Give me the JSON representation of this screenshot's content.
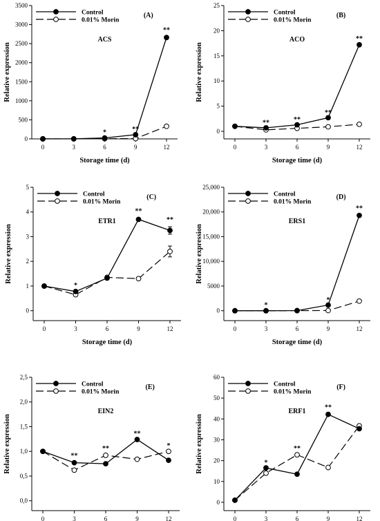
{
  "chart_data": [
    {
      "type": "line",
      "panel_letter": "(A)",
      "annotation": "ACS",
      "xlabel": "Storage time (d)",
      "ylabel": "Relative expression",
      "x": [
        0,
        3,
        6,
        9,
        12
      ],
      "x_ticks": [
        "0",
        "3",
        "6",
        "9",
        "12"
      ],
      "y_ticks": [
        "0",
        "500",
        "1000",
        "1500",
        "2000",
        "2500",
        "3000",
        "3500"
      ],
      "ylim": [
        0,
        3500
      ],
      "series": [
        {
          "name": "Control",
          "values": [
            1,
            2,
            25,
            110,
            2660
          ],
          "marker": "filled-circle",
          "line": "solid",
          "color": "#000000"
        },
        {
          "name": "0.01% Morin",
          "values": [
            1,
            1,
            5,
            8,
            330
          ],
          "marker": "open-circle",
          "line": "dashed",
          "color": "#000000"
        }
      ],
      "significance": [
        {
          "x": 6,
          "y": 120,
          "label": "*"
        },
        {
          "x": 9,
          "y": 200,
          "label": "**"
        },
        {
          "x": 12,
          "y": 2800,
          "label": "**"
        }
      ],
      "legend_position": "top-left"
    },
    {
      "type": "line",
      "panel_letter": "(B)",
      "annotation": "ACO",
      "xlabel": "Storage time (d)",
      "ylabel": "Relative expression",
      "x": [
        0,
        3,
        6,
        9,
        12
      ],
      "x_ticks": [
        "0",
        "3",
        "6",
        "9",
        "12"
      ],
      "y_ticks": [
        "0",
        "5",
        "10",
        "15",
        "20",
        "25"
      ],
      "ylim": [
        -1.5,
        25
      ],
      "series": [
        {
          "name": "Control",
          "values": [
            1,
            0.7,
            1.3,
            2.7,
            17.2
          ],
          "marker": "filled-circle",
          "line": "solid",
          "color": "#000000"
        },
        {
          "name": "0.01% Morin",
          "values": [
            1,
            0.3,
            0.6,
            0.9,
            1.4
          ],
          "marker": "open-circle",
          "line": "dashed",
          "color": "#000000"
        }
      ],
      "significance": [
        {
          "x": 3,
          "y": 1.3,
          "label": "**"
        },
        {
          "x": 6,
          "y": 1.9,
          "label": "**"
        },
        {
          "x": 9,
          "y": 3.3,
          "label": "**"
        },
        {
          "x": 12,
          "y": 18.0,
          "label": "**"
        }
      ],
      "legend_position": "top-left"
    },
    {
      "type": "line",
      "panel_letter": "(C)",
      "annotation": "ETR1",
      "xlabel": "Storage time (d)",
      "ylabel": "Relative expression",
      "x": [
        0,
        3,
        6,
        9,
        12
      ],
      "x_ticks": [
        "0",
        "3",
        "6",
        "9",
        "12"
      ],
      "y_ticks": [
        "0",
        "1",
        "2",
        "3",
        "4",
        "5"
      ],
      "ylim": [
        -0.4,
        5
      ],
      "series": [
        {
          "name": "Control",
          "values": [
            1.0,
            0.78,
            1.32,
            3.7,
            3.25
          ],
          "marker": "filled-circle",
          "line": "solid",
          "color": "#000000"
        },
        {
          "name": "0.01% Morin",
          "values": [
            1.0,
            0.65,
            1.35,
            1.3,
            2.4
          ],
          "marker": "open-circle",
          "line": "dashed",
          "color": "#000000"
        }
      ],
      "error_bars": [
        {
          "series": "Control",
          "x": 12,
          "err": 0.15
        },
        {
          "series": "0.01% Morin",
          "x": 12,
          "err": 0.22
        }
      ],
      "significance": [
        {
          "x": 3,
          "y": 0.95,
          "label": "*"
        },
        {
          "x": 9,
          "y": 3.95,
          "label": "**"
        },
        {
          "x": 12,
          "y": 3.6,
          "label": "**"
        }
      ],
      "legend_position": "top-left"
    },
    {
      "type": "line",
      "panel_letter": "(D)",
      "annotation": "ERS1",
      "xlabel": "Storage time (d)",
      "ylabel": "Relative expression",
      "x": [
        0,
        3,
        6,
        9,
        12
      ],
      "x_ticks": [
        "0",
        "3",
        "6",
        "9",
        "12"
      ],
      "y_ticks": [
        "0",
        "5000",
        "10,000",
        "15,000",
        "20,000",
        "25,000"
      ],
      "ylim": [
        -2000,
        25000
      ],
      "series": [
        {
          "name": "Control",
          "values": [
            1,
            1,
            30,
            1150,
            19300
          ],
          "marker": "filled-circle",
          "line": "solid",
          "color": "#000000"
        },
        {
          "name": "0.01% Morin",
          "values": [
            1,
            1,
            20,
            40,
            1950
          ],
          "marker": "open-circle",
          "line": "dashed",
          "color": "#000000"
        }
      ],
      "significance": [
        {
          "x": 3,
          "y": 700,
          "label": "*"
        },
        {
          "x": 9,
          "y": 1800,
          "label": "*"
        },
        {
          "x": 12,
          "y": 20300,
          "label": "**"
        }
      ],
      "legend_position": "top-left"
    },
    {
      "type": "line",
      "panel_letter": "(E)",
      "annotation": "EIN2",
      "xlabel": "Storage time (d)",
      "ylabel": "Relative expression",
      "x": [
        0,
        3,
        6,
        9,
        12
      ],
      "x_ticks": [
        "0",
        "3",
        "6",
        "9",
        "12"
      ],
      "y_ticks": [
        "0,0",
        "0,5",
        "1,0",
        "1,5",
        "2,0",
        "2,5"
      ],
      "ylim": [
        -0.2,
        2.5
      ],
      "series": [
        {
          "name": "Control",
          "values": [
            1.0,
            0.77,
            0.75,
            1.24,
            0.82
          ],
          "marker": "filled-circle",
          "line": "solid",
          "color": "#000000"
        },
        {
          "name": "0.01% Morin",
          "values": [
            1.0,
            0.62,
            0.92,
            0.84,
            1.0
          ],
          "marker": "open-circle",
          "line": "dashed",
          "color": "#000000"
        }
      ],
      "significance": [
        {
          "x": 3,
          "y": 0.87,
          "label": "**"
        },
        {
          "x": 6,
          "y": 1.02,
          "label": "**"
        },
        {
          "x": 9,
          "y": 1.32,
          "label": "**"
        },
        {
          "x": 12,
          "y": 1.07,
          "label": "*"
        }
      ],
      "legend_position": "top-left"
    },
    {
      "type": "line",
      "panel_letter": "(F)",
      "annotation": "ERF1",
      "xlabel": "Storage time (d)",
      "ylabel": "Relative expression",
      "x": [
        0,
        3,
        6,
        9,
        12
      ],
      "x_ticks": [
        "0",
        "3",
        "6",
        "9",
        "12"
      ],
      "y_ticks": [
        "0",
        "10",
        "20",
        "30",
        "40",
        "50",
        "60"
      ],
      "ylim": [
        -4,
        60
      ],
      "series": [
        {
          "name": "Control",
          "values": [
            1,
            16.5,
            13.5,
            42.2,
            35.3
          ],
          "marker": "filled-circle",
          "line": "solid",
          "color": "#000000"
        },
        {
          "name": "0.01% Morin",
          "values": [
            1,
            14,
            22.8,
            16.7,
            36.7
          ],
          "marker": "open-circle",
          "line": "dashed",
          "color": "#000000"
        }
      ],
      "significance": [
        {
          "x": 3,
          "y": 18,
          "label": "*"
        },
        {
          "x": 6,
          "y": 24.8,
          "label": "**"
        },
        {
          "x": 9,
          "y": 44.5,
          "label": "**"
        }
      ],
      "legend_position": "top-left"
    }
  ]
}
